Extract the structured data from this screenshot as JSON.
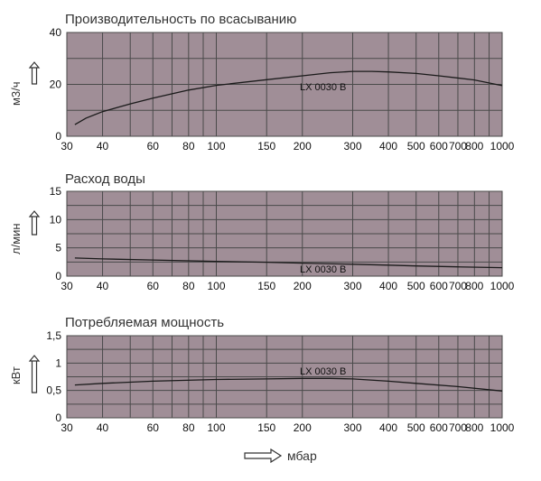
{
  "colors": {
    "plot_background": "#a08e97",
    "grid": "#4a4a4a",
    "curve": "#1a1a1a",
    "text": "#222222"
  },
  "chart_data": [
    {
      "type": "line",
      "title": "Производительность по всасыванию",
      "ylabel": "м3/ч",
      "x_scale": "log",
      "xlim": [
        30,
        1000
      ],
      "ylim": [
        0,
        40
      ],
      "x_ticks": [
        30,
        40,
        60,
        80,
        100,
        150,
        200,
        300,
        400,
        500,
        600,
        700,
        800,
        1000
      ],
      "y_ticks": [
        0,
        20,
        40
      ],
      "series": [
        {
          "name": "LX 0030 B",
          "x": [
            32,
            35,
            40,
            50,
            60,
            80,
            100,
            150,
            200,
            250,
            300,
            350,
            400,
            500,
            600,
            800,
            1000
          ],
          "y": [
            4.5,
            7,
            9.5,
            12.5,
            14.7,
            17.8,
            19.6,
            21.8,
            23.3,
            24.5,
            25.0,
            25.0,
            24.8,
            24.2,
            23.3,
            21.7,
            19.5
          ]
        }
      ]
    },
    {
      "type": "line",
      "title": "Расход воды",
      "ylabel": "л/мин",
      "x_scale": "log",
      "xlim": [
        30,
        1000
      ],
      "ylim": [
        0,
        15
      ],
      "x_ticks": [
        30,
        40,
        60,
        80,
        100,
        150,
        200,
        300,
        400,
        500,
        600,
        700,
        800,
        1000
      ],
      "y_ticks": [
        0,
        5,
        10,
        15
      ],
      "series": [
        {
          "name": "LX 0030 B",
          "x": [
            32,
            40,
            60,
            100,
            150,
            200,
            300,
            400,
            500,
            700,
            1000
          ],
          "y": [
            3.2,
            3.05,
            2.85,
            2.6,
            2.45,
            2.3,
            2.1,
            1.95,
            1.8,
            1.65,
            1.5
          ]
        }
      ]
    },
    {
      "type": "line",
      "title": "Потребляемая мощность",
      "ylabel": "кВт",
      "x_scale": "log",
      "xlim": [
        30,
        1000
      ],
      "ylim": [
        0,
        1.5
      ],
      "x_ticks": [
        30,
        40,
        60,
        80,
        100,
        150,
        200,
        300,
        400,
        500,
        600,
        700,
        800,
        1000
      ],
      "y_ticks": [
        0,
        0.5,
        1,
        1.5
      ],
      "y_tick_labels": [
        "0",
        "0,5",
        "1",
        "1,5"
      ],
      "series": [
        {
          "name": "LX 0030 B",
          "x": [
            32,
            40,
            60,
            100,
            150,
            200,
            250,
            300,
            400,
            500,
            700,
            1000
          ],
          "y": [
            0.6,
            0.63,
            0.67,
            0.7,
            0.71,
            0.72,
            0.72,
            0.71,
            0.67,
            0.63,
            0.57,
            0.49
          ]
        }
      ]
    }
  ],
  "x_axis_unit": "мбар"
}
